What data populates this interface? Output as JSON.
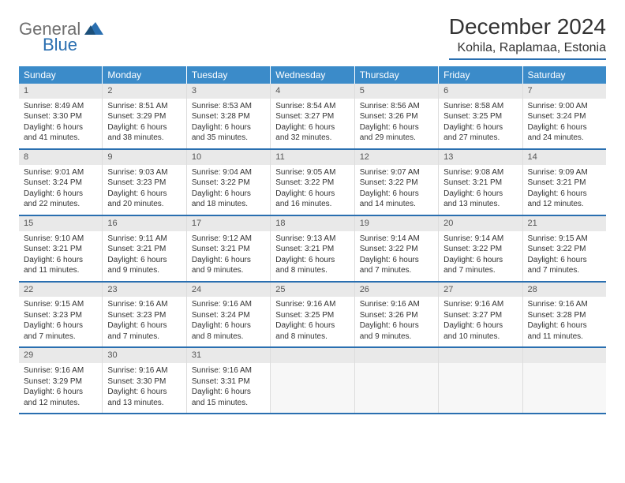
{
  "logo": {
    "text1": "General",
    "text2": "Blue"
  },
  "title": "December 2024",
  "location": "Kohila, Raplamaa, Estonia",
  "colors": {
    "header_bg": "#3b8bc9",
    "rule": "#2a6fb0",
    "daynum_bg": "#e9e9e9"
  },
  "weekdays": [
    "Sunday",
    "Monday",
    "Tuesday",
    "Wednesday",
    "Thursday",
    "Friday",
    "Saturday"
  ],
  "weeks": [
    [
      {
        "n": "1",
        "sr": "Sunrise: 8:49 AM",
        "ss": "Sunset: 3:30 PM",
        "dl1": "Daylight: 6 hours",
        "dl2": "and 41 minutes."
      },
      {
        "n": "2",
        "sr": "Sunrise: 8:51 AM",
        "ss": "Sunset: 3:29 PM",
        "dl1": "Daylight: 6 hours",
        "dl2": "and 38 minutes."
      },
      {
        "n": "3",
        "sr": "Sunrise: 8:53 AM",
        "ss": "Sunset: 3:28 PM",
        "dl1": "Daylight: 6 hours",
        "dl2": "and 35 minutes."
      },
      {
        "n": "4",
        "sr": "Sunrise: 8:54 AM",
        "ss": "Sunset: 3:27 PM",
        "dl1": "Daylight: 6 hours",
        "dl2": "and 32 minutes."
      },
      {
        "n": "5",
        "sr": "Sunrise: 8:56 AM",
        "ss": "Sunset: 3:26 PM",
        "dl1": "Daylight: 6 hours",
        "dl2": "and 29 minutes."
      },
      {
        "n": "6",
        "sr": "Sunrise: 8:58 AM",
        "ss": "Sunset: 3:25 PM",
        "dl1": "Daylight: 6 hours",
        "dl2": "and 27 minutes."
      },
      {
        "n": "7",
        "sr": "Sunrise: 9:00 AM",
        "ss": "Sunset: 3:24 PM",
        "dl1": "Daylight: 6 hours",
        "dl2": "and 24 minutes."
      }
    ],
    [
      {
        "n": "8",
        "sr": "Sunrise: 9:01 AM",
        "ss": "Sunset: 3:24 PM",
        "dl1": "Daylight: 6 hours",
        "dl2": "and 22 minutes."
      },
      {
        "n": "9",
        "sr": "Sunrise: 9:03 AM",
        "ss": "Sunset: 3:23 PM",
        "dl1": "Daylight: 6 hours",
        "dl2": "and 20 minutes."
      },
      {
        "n": "10",
        "sr": "Sunrise: 9:04 AM",
        "ss": "Sunset: 3:22 PM",
        "dl1": "Daylight: 6 hours",
        "dl2": "and 18 minutes."
      },
      {
        "n": "11",
        "sr": "Sunrise: 9:05 AM",
        "ss": "Sunset: 3:22 PM",
        "dl1": "Daylight: 6 hours",
        "dl2": "and 16 minutes."
      },
      {
        "n": "12",
        "sr": "Sunrise: 9:07 AM",
        "ss": "Sunset: 3:22 PM",
        "dl1": "Daylight: 6 hours",
        "dl2": "and 14 minutes."
      },
      {
        "n": "13",
        "sr": "Sunrise: 9:08 AM",
        "ss": "Sunset: 3:21 PM",
        "dl1": "Daylight: 6 hours",
        "dl2": "and 13 minutes."
      },
      {
        "n": "14",
        "sr": "Sunrise: 9:09 AM",
        "ss": "Sunset: 3:21 PM",
        "dl1": "Daylight: 6 hours",
        "dl2": "and 12 minutes."
      }
    ],
    [
      {
        "n": "15",
        "sr": "Sunrise: 9:10 AM",
        "ss": "Sunset: 3:21 PM",
        "dl1": "Daylight: 6 hours",
        "dl2": "and 11 minutes."
      },
      {
        "n": "16",
        "sr": "Sunrise: 9:11 AM",
        "ss": "Sunset: 3:21 PM",
        "dl1": "Daylight: 6 hours",
        "dl2": "and 9 minutes."
      },
      {
        "n": "17",
        "sr": "Sunrise: 9:12 AM",
        "ss": "Sunset: 3:21 PM",
        "dl1": "Daylight: 6 hours",
        "dl2": "and 9 minutes."
      },
      {
        "n": "18",
        "sr": "Sunrise: 9:13 AM",
        "ss": "Sunset: 3:21 PM",
        "dl1": "Daylight: 6 hours",
        "dl2": "and 8 minutes."
      },
      {
        "n": "19",
        "sr": "Sunrise: 9:14 AM",
        "ss": "Sunset: 3:22 PM",
        "dl1": "Daylight: 6 hours",
        "dl2": "and 7 minutes."
      },
      {
        "n": "20",
        "sr": "Sunrise: 9:14 AM",
        "ss": "Sunset: 3:22 PM",
        "dl1": "Daylight: 6 hours",
        "dl2": "and 7 minutes."
      },
      {
        "n": "21",
        "sr": "Sunrise: 9:15 AM",
        "ss": "Sunset: 3:22 PM",
        "dl1": "Daylight: 6 hours",
        "dl2": "and 7 minutes."
      }
    ],
    [
      {
        "n": "22",
        "sr": "Sunrise: 9:15 AM",
        "ss": "Sunset: 3:23 PM",
        "dl1": "Daylight: 6 hours",
        "dl2": "and 7 minutes."
      },
      {
        "n": "23",
        "sr": "Sunrise: 9:16 AM",
        "ss": "Sunset: 3:23 PM",
        "dl1": "Daylight: 6 hours",
        "dl2": "and 7 minutes."
      },
      {
        "n": "24",
        "sr": "Sunrise: 9:16 AM",
        "ss": "Sunset: 3:24 PM",
        "dl1": "Daylight: 6 hours",
        "dl2": "and 8 minutes."
      },
      {
        "n": "25",
        "sr": "Sunrise: 9:16 AM",
        "ss": "Sunset: 3:25 PM",
        "dl1": "Daylight: 6 hours",
        "dl2": "and 8 minutes."
      },
      {
        "n": "26",
        "sr": "Sunrise: 9:16 AM",
        "ss": "Sunset: 3:26 PM",
        "dl1": "Daylight: 6 hours",
        "dl2": "and 9 minutes."
      },
      {
        "n": "27",
        "sr": "Sunrise: 9:16 AM",
        "ss": "Sunset: 3:27 PM",
        "dl1": "Daylight: 6 hours",
        "dl2": "and 10 minutes."
      },
      {
        "n": "28",
        "sr": "Sunrise: 9:16 AM",
        "ss": "Sunset: 3:28 PM",
        "dl1": "Daylight: 6 hours",
        "dl2": "and 11 minutes."
      }
    ],
    [
      {
        "n": "29",
        "sr": "Sunrise: 9:16 AM",
        "ss": "Sunset: 3:29 PM",
        "dl1": "Daylight: 6 hours",
        "dl2": "and 12 minutes."
      },
      {
        "n": "30",
        "sr": "Sunrise: 9:16 AM",
        "ss": "Sunset: 3:30 PM",
        "dl1": "Daylight: 6 hours",
        "dl2": "and 13 minutes."
      },
      {
        "n": "31",
        "sr": "Sunrise: 9:16 AM",
        "ss": "Sunset: 3:31 PM",
        "dl1": "Daylight: 6 hours",
        "dl2": "and 15 minutes."
      },
      {
        "empty": true
      },
      {
        "empty": true
      },
      {
        "empty": true
      },
      {
        "empty": true
      }
    ]
  ]
}
